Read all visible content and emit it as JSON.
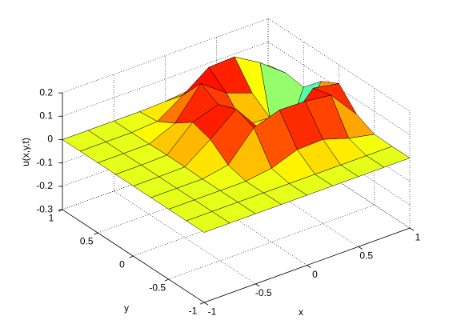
{
  "chart_data": {
    "type": "surface",
    "xlabel": "x",
    "ylabel": "y",
    "zlabel": "u(x,y,t)",
    "x": [
      -1,
      -0.75,
      -0.5,
      -0.25,
      0,
      0.25,
      0.5,
      0.75,
      1
    ],
    "y": [
      -1,
      -0.75,
      -0.5,
      -0.25,
      0,
      0.25,
      0.5,
      0.75,
      1
    ],
    "z": [
      [
        0,
        0,
        0,
        0,
        0,
        0,
        0,
        0,
        0
      ],
      [
        0,
        0,
        0,
        0,
        0,
        0,
        0,
        0,
        0
      ],
      [
        0,
        0,
        0,
        0,
        0.016,
        0.056,
        0.06,
        0.025,
        0.002
      ],
      [
        0,
        0,
        0,
        0.02,
        0.14,
        0.176,
        0.173,
        0.16,
        0.038
      ],
      [
        0,
        0,
        0.002,
        0.08,
        0.17,
        0.038,
        0.025,
        0.14,
        0.12
      ],
      [
        0,
        0,
        0.003,
        0.104,
        0.14,
        0.01,
        0.004,
        -0.09,
        0.08
      ],
      [
        0,
        0,
        0.001,
        0.05,
        0.18,
        0.1,
        0.06,
        -0.28,
        0.005
      ],
      [
        0,
        0,
        0,
        0.008,
        0.08,
        0.16,
        0.165,
        0.1,
        0.016
      ],
      [
        0,
        0,
        0,
        0,
        0.004,
        0.016,
        0.016,
        0.005,
        0
      ]
    ],
    "xlim": [
      -1,
      1
    ],
    "ylim": [
      -1,
      1
    ],
    "zlim": [
      -0.3,
      0.2
    ],
    "xticks": [
      -1,
      -0.5,
      0,
      0.5,
      1
    ],
    "yticks": [
      -1,
      -0.5,
      0,
      0.5,
      1
    ],
    "zticks": [
      -0.3,
      -0.2,
      -0.1,
      0,
      0.1,
      0.2
    ],
    "colormap": "jet",
    "grid": true,
    "mesh_color": "#000000"
  }
}
